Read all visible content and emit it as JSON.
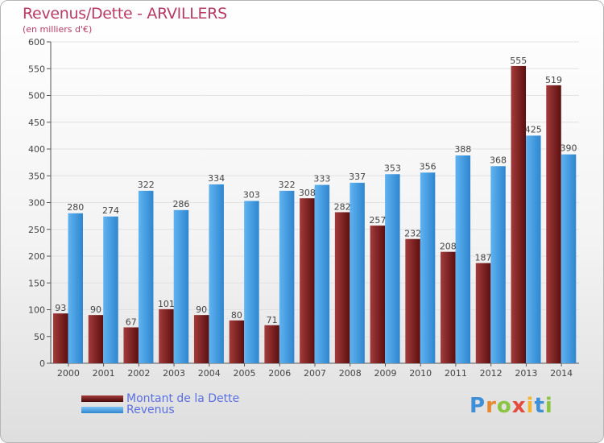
{
  "header": {
    "title": "Revenus/Dette - ARVILLERS",
    "subtitle": "(en milliers d'€)"
  },
  "colors": {
    "debt": "#7a1f1f",
    "revenue": "#4ea3e6",
    "grid": "#e2e2e2",
    "axis_text": "#444444",
    "title": "#b83b66",
    "legend_text": "#5a6fe0"
  },
  "legend": {
    "debt_label": "Montant de la Dette",
    "revenue_label": "Revenus"
  },
  "logo": {
    "letters": [
      "P",
      "r",
      "o",
      "x",
      "i",
      "t",
      "i"
    ],
    "letter_colors": [
      "#3d8fd8",
      "#e8882e",
      "#8bc53f",
      "#e54b3c",
      "#f2b632",
      "#3d8fd8",
      "#8bc53f"
    ]
  },
  "chart_data": {
    "type": "bar",
    "title": "Revenus/Dette - ARVILLERS",
    "subtitle": "(en milliers d'€)",
    "categories": [
      "2000",
      "2001",
      "2002",
      "2003",
      "2004",
      "2005",
      "2006",
      "2007",
      "2008",
      "2009",
      "2010",
      "2011",
      "2012",
      "2013",
      "2014"
    ],
    "series": [
      {
        "name": "Montant de la Dette",
        "values": [
          93,
          90,
          67,
          101,
          90,
          80,
          71,
          308,
          282,
          257,
          232,
          208,
          187,
          555,
          519
        ]
      },
      {
        "name": "Revenus",
        "values": [
          280,
          274,
          322,
          286,
          334,
          303,
          322,
          333,
          337,
          353,
          356,
          388,
          368,
          425,
          390
        ]
      }
    ],
    "ylim": [
      0,
      600
    ],
    "yticks": [
      0,
      50,
      100,
      150,
      200,
      250,
      300,
      350,
      400,
      450,
      500,
      550,
      600
    ],
    "grid": true,
    "legend_position": "bottom-left"
  }
}
